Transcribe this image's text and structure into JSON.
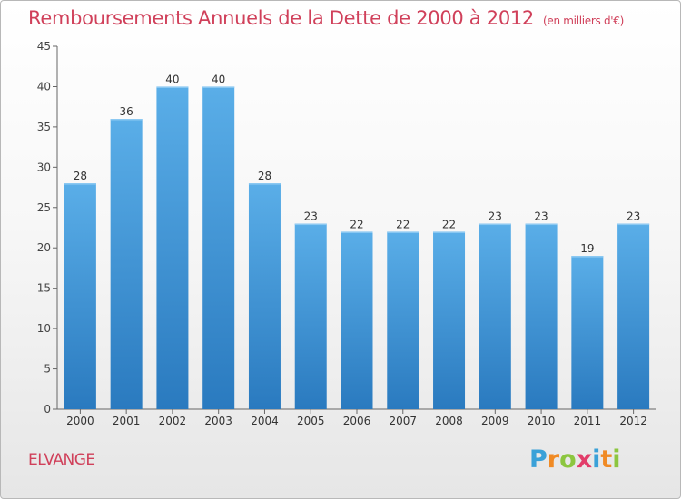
{
  "title": "Remboursements Annuels de la Dette de 2000 à 2012",
  "subtitle": "(en milliers d'€)",
  "city": "ELVANGE",
  "brand": {
    "p": "P",
    "r": "r",
    "o": "o",
    "x": "x",
    "i": "i",
    "t": "t",
    "i2": "i"
  },
  "colors": {
    "title": "#d0405a",
    "bar_top": "#5aaee8",
    "bar_bottom": "#2a7abf",
    "axis": "#555555"
  },
  "chart_data": {
    "type": "bar",
    "categories": [
      "2000",
      "2001",
      "2002",
      "2003",
      "2004",
      "2005",
      "2006",
      "2007",
      "2008",
      "2009",
      "2010",
      "2011",
      "2012"
    ],
    "values": [
      28,
      36,
      40,
      40,
      28,
      23,
      22,
      22,
      22,
      23,
      23,
      19,
      23
    ],
    "data_labels": [
      "28",
      "36",
      "40",
      "40",
      "28",
      "23",
      "22",
      "22",
      "22",
      "23",
      "23",
      "19",
      "23"
    ],
    "yticks": [
      0,
      5,
      10,
      15,
      20,
      25,
      30,
      35,
      40,
      45
    ],
    "ylim": [
      0,
      45
    ],
    "grid": false,
    "legend": "none"
  }
}
